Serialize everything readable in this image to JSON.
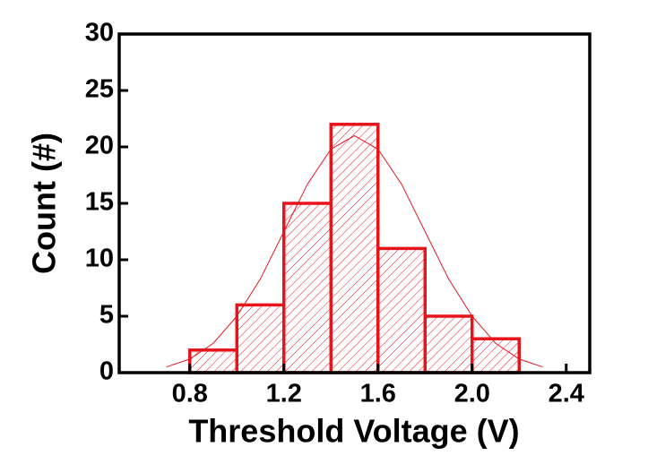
{
  "chart_data": {
    "type": "histogram",
    "xlabel": "Threshold Voltage (V)",
    "ylabel": "Count (#)",
    "bins": [
      0.8,
      1.0,
      1.2,
      1.4,
      1.6,
      1.8,
      2.0,
      2.2
    ],
    "counts": [
      2,
      6,
      15,
      22,
      11,
      5,
      3
    ],
    "color": "#e8141c",
    "fit_curve": {
      "color": "#e8141c",
      "x": [
        0.7,
        0.8,
        0.9,
        1.0,
        1.1,
        1.2,
        1.3,
        1.4,
        1.5,
        1.6,
        1.7,
        1.8,
        1.9,
        2.0,
        2.1,
        2.2,
        2.3
      ],
      "y": [
        0.5,
        1.2,
        2.6,
        5.0,
        8.3,
        12.5,
        16.7,
        19.8,
        21,
        19.8,
        16.7,
        12.5,
        8.3,
        5.0,
        2.6,
        1.2,
        0.5
      ]
    },
    "xlim": [
      0.5,
      2.5
    ],
    "ylim": [
      0,
      30
    ],
    "xticks": [
      0.8,
      1.2,
      1.6,
      {
        "value": 2,
        "label": "2.0"
      },
      2.4
    ],
    "yticks": [
      0,
      5,
      10,
      15,
      20,
      25,
      30
    ]
  }
}
